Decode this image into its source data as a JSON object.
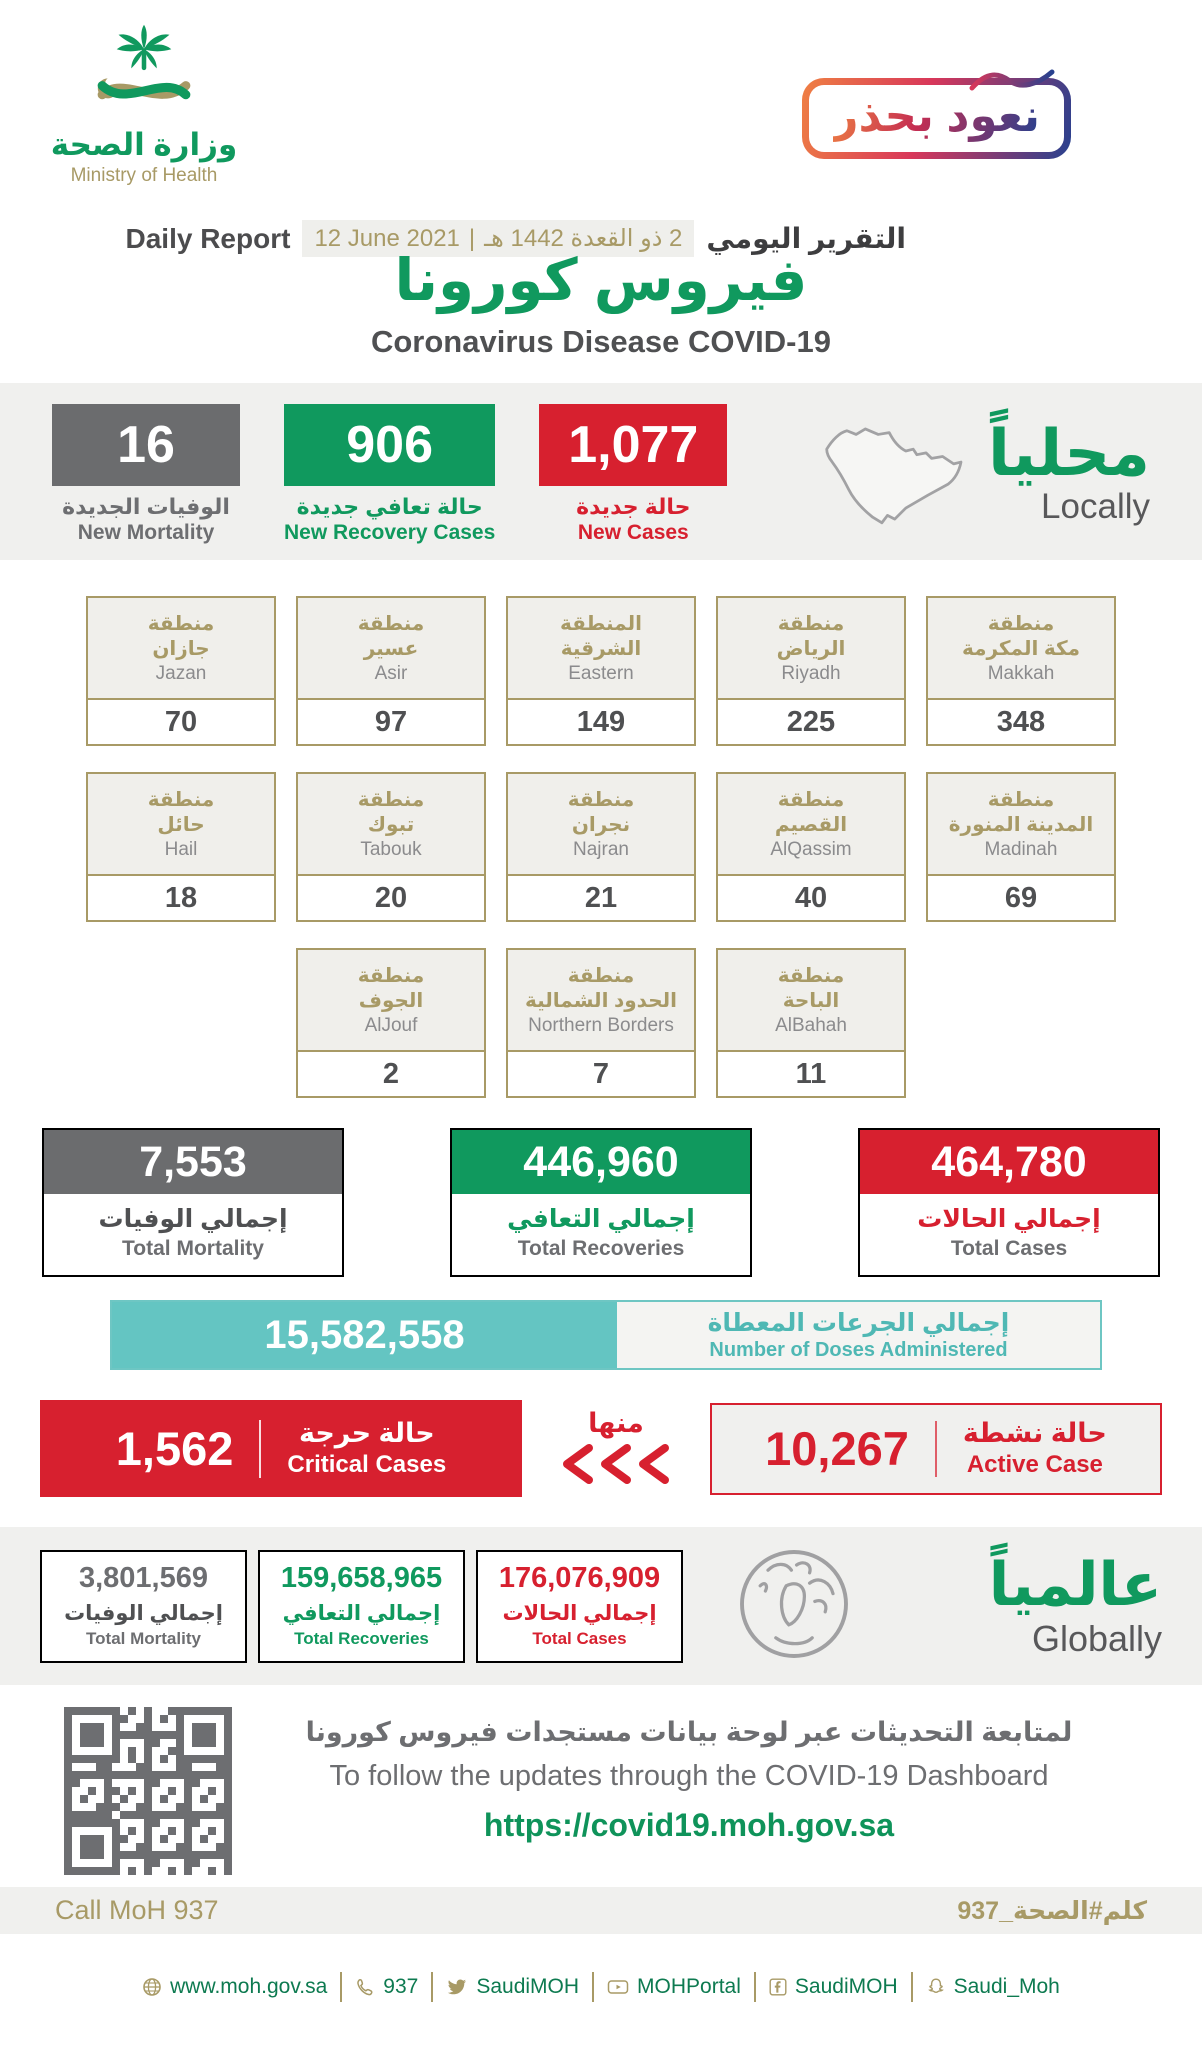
{
  "header": {
    "logo_ar": "وزارة الصحة",
    "logo_en": "Ministry of Health",
    "badge": "نعود بحذر",
    "report_en": "Daily Report",
    "report_ar": "التقرير اليومي",
    "date_en": "12 June 2021",
    "date_divider": "|",
    "date_ar": "2 ذو القعدة 1442 هـ",
    "title_ar": "فيروس كورونا",
    "title_en": "Coronavirus Disease COVID-19"
  },
  "locally": {
    "heading_ar": "محلياً",
    "heading_en": "Locally",
    "new_stats": [
      {
        "value": "16",
        "label_ar": "الوفيات الجديدة",
        "label_en": "New Mortality",
        "color": "gray"
      },
      {
        "value": "906",
        "label_ar": "حالة تعافي جديدة",
        "label_en": "New Recovery Cases",
        "color": "green"
      },
      {
        "value": "1,077",
        "label_ar": "حالة جديدة",
        "label_en": "New Cases",
        "color": "red"
      }
    ],
    "regions": {
      "rows": [
        [
          {
            "ar": "منطقة\nجازان",
            "en": "Jazan",
            "value": "70"
          },
          {
            "ar": "منطقة\nعسير",
            "en": "Asir",
            "value": "97"
          },
          {
            "ar": "المنطقة\nالشرقية",
            "en": "Eastern",
            "value": "149"
          },
          {
            "ar": "منطقة\nالرياض",
            "en": "Riyadh",
            "value": "225"
          },
          {
            "ar": "منطقة\nمكة المكرمة",
            "en": "Makkah",
            "value": "348"
          }
        ],
        [
          {
            "ar": "منطقة\nحائل",
            "en": "Hail",
            "value": "18"
          },
          {
            "ar": "منطقة\nتبوك",
            "en": "Tabouk",
            "value": "20"
          },
          {
            "ar": "منطقة\nنجران",
            "en": "Najran",
            "value": "21"
          },
          {
            "ar": "منطقة\nالقصيم",
            "en": "AlQassim",
            "value": "40"
          },
          {
            "ar": "منطقة\nالمدينة المنورة",
            "en": "Madinah",
            "value": "69"
          }
        ],
        [
          {
            "ar": "منطقة\nالجوف",
            "en": "AlJouf",
            "value": "2"
          },
          {
            "ar": "منطقة\nالحدود الشمالية",
            "en": "Northern Borders",
            "value": "7"
          },
          {
            "ar": "منطقة\nالباحة",
            "en": "AlBahah",
            "value": "11"
          }
        ]
      ]
    },
    "totals": [
      {
        "value": "7,553",
        "label_ar": "إجمالي الوفيات",
        "label_en": "Total Mortality",
        "color": "gray"
      },
      {
        "value": "446,960",
        "label_ar": "إجمالي التعافي",
        "label_en": "Total Recoveries",
        "color": "green"
      },
      {
        "value": "464,780",
        "label_ar": "إجمالي الحالات",
        "label_en": "Total Cases",
        "color": "red"
      }
    ],
    "doses": {
      "value": "15,582,558",
      "label_ar": "إجمالي الجرعات المعطاة",
      "label_en": "Number of Doses Administered"
    },
    "critical": {
      "value": "1,562",
      "label_ar": "حالة حرجة",
      "label_en": "Critical Cases"
    },
    "of_which": "منها",
    "active": {
      "value": "10,267",
      "label_ar": "حالة نشطة",
      "label_en": "Active Case"
    }
  },
  "globally": {
    "heading_ar": "عالمياً",
    "heading_en": "Globally",
    "totals": [
      {
        "value": "3,801,569",
        "label_ar": "إجمالي الوفيات",
        "label_en": "Total Mortality",
        "color": "gray"
      },
      {
        "value": "159,658,965",
        "label_ar": "إجمالي التعافي",
        "label_en": "Total Recoveries",
        "color": "green"
      },
      {
        "value": "176,076,909",
        "label_ar": "إجمالي الحالات",
        "label_en": "Total Cases",
        "color": "red"
      }
    ]
  },
  "dashboard": {
    "text_ar": "لمتابعة التحديثات عبر لوحة بيانات مستجدات فيروس كورونا",
    "text_en": "To follow the updates through the COVID-19 Dashboard",
    "url": "https://covid19.moh.gov.sa"
  },
  "call_band": {
    "left": "Call MoH 937",
    "right": "كلم#الصحة_937"
  },
  "footer": {
    "items": [
      {
        "icon": "globe-icon",
        "label": "www.moh.gov.sa"
      },
      {
        "icon": "phone-icon",
        "label": "937"
      },
      {
        "icon": "twitter-icon",
        "label": "SaudiMOH"
      },
      {
        "icon": "youtube-icon",
        "label": "MOHPortal"
      },
      {
        "icon": "facebook-icon",
        "label": "SaudiMOH"
      },
      {
        "icon": "snapchat-icon",
        "label": "Saudi_Moh"
      }
    ]
  },
  "colors": {
    "green": "#10995e",
    "red": "#d7202f",
    "gray": "#6b6c6e",
    "gold": "#a89a66",
    "teal": "#64c5c2",
    "band": "#f0f0ee"
  }
}
